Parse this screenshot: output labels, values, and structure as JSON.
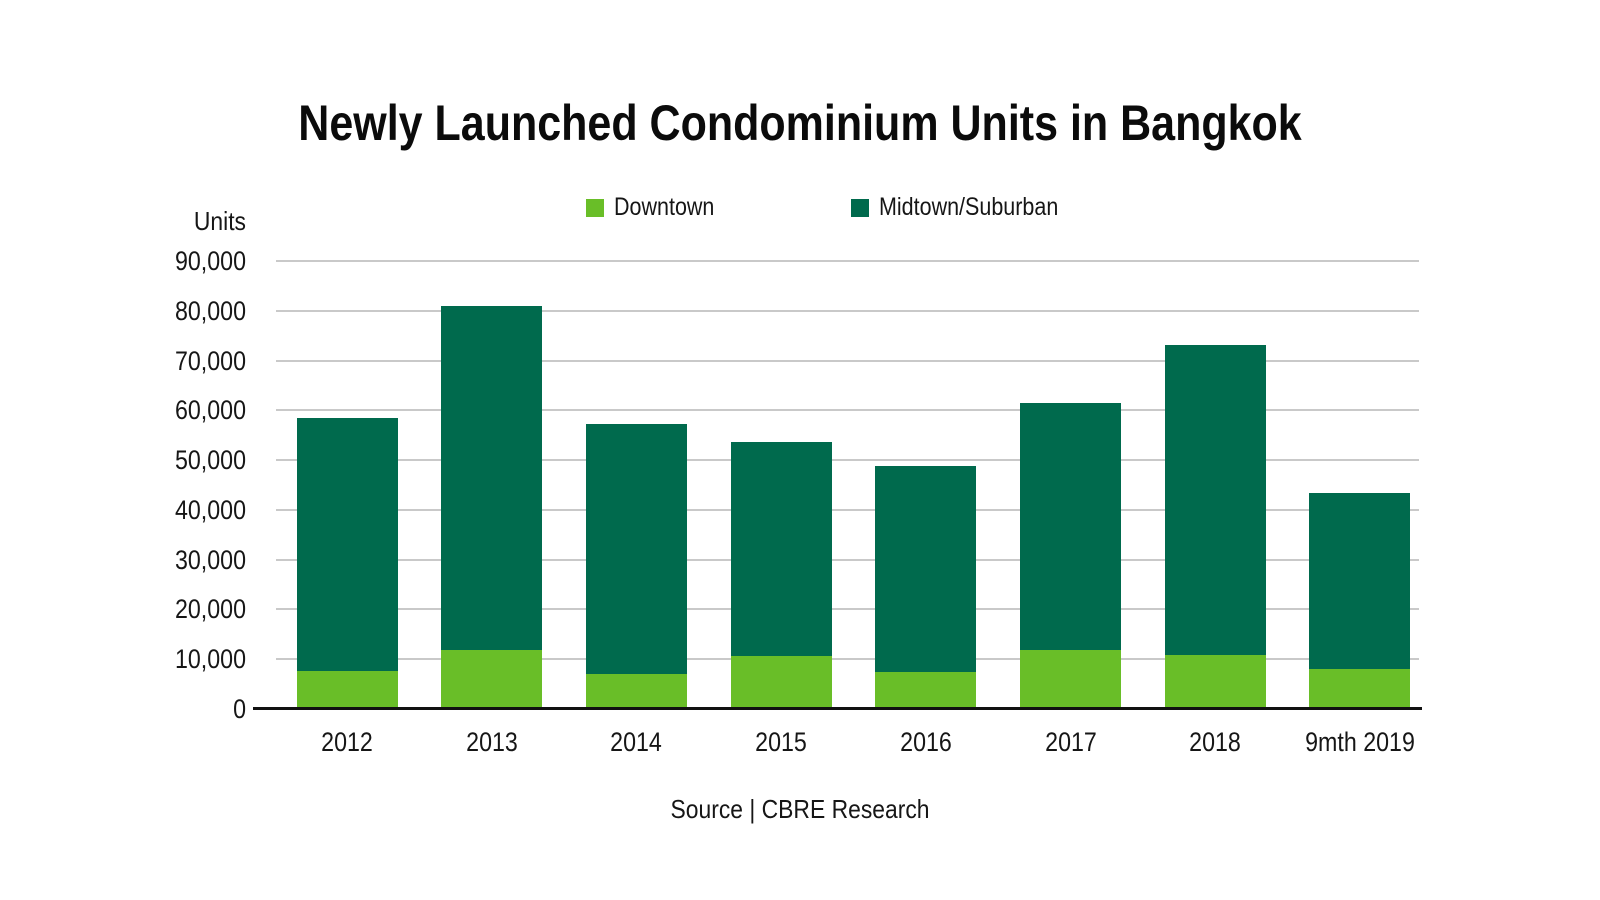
{
  "title": "Newly Launched Condominium Units in Bangkok",
  "y_axis_unit_label": "Units",
  "legend": [
    {
      "label": "Downtown",
      "color": "#69BE28"
    },
    {
      "label": "Midtown/Suburban",
      "color": "#006A4D"
    }
  ],
  "source": "Source | CBRE Research",
  "colors": {
    "downtown": "#69BE28",
    "midtown_suburban": "#006A4D",
    "gridline": "#c9c9c9",
    "axis_line": "#111111",
    "text": "#161616"
  },
  "chart_data": {
    "type": "bar",
    "stacked": true,
    "title": "Newly Launched Condominium Units in Bangkok",
    "categories": [
      "2012",
      "2013",
      "2014",
      "2015",
      "2016",
      "2017",
      "2018",
      "9mth 2019"
    ],
    "series": [
      {
        "name": "Downtown",
        "color": "#69BE28",
        "values": [
          7600,
          11800,
          7100,
          10600,
          7500,
          11900,
          10800,
          8000
        ]
      },
      {
        "name": "Midtown/Suburban",
        "color": "#006A4D",
        "values": [
          50800,
          69200,
          50200,
          43100,
          41300,
          49500,
          62300,
          35400
        ]
      }
    ],
    "totals": [
      58400,
      81000,
      57300,
      53700,
      48800,
      61400,
      73100,
      43400
    ],
    "xlabel": "",
    "ylabel": "Units",
    "ylim": [
      0,
      90000
    ],
    "ytick_step": 10000,
    "ytick_labels": [
      "0",
      "10,000",
      "20,000",
      "30,000",
      "40,000",
      "50,000",
      "60,000",
      "70,000",
      "80,000",
      "90,000"
    ],
    "grid": true,
    "legend_position": "top",
    "source": "Source | CBRE Research"
  }
}
